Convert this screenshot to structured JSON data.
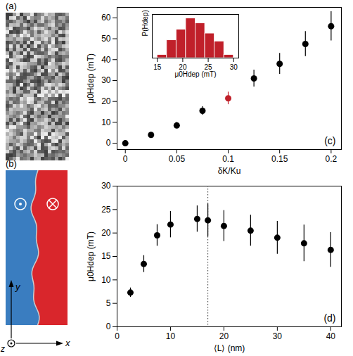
{
  "panels": {
    "a": {
      "label": "(a)"
    },
    "b": {
      "label": "(b)",
      "axis_labels": {
        "x": "x",
        "y": "y",
        "z": "z"
      },
      "colors": [
        "#3a7dc0",
        "#d9262c"
      ]
    }
  },
  "chart_data": [
    {
      "type": "scatter",
      "annotation": "(c)",
      "x_label": "δK/Ku",
      "y_label": "μ0Hdep (mT)",
      "x": [
        0,
        0.025,
        0.05,
        0.075,
        0.1,
        0.125,
        0.15,
        0.175,
        0.2
      ],
      "values": [
        0,
        4,
        8.5,
        15.5,
        21.5,
        31,
        38,
        47.5,
        56
      ],
      "errors": [
        0.5,
        1,
        1.5,
        2,
        3,
        4,
        5,
        6,
        7
      ],
      "colors": [
        "#000000",
        "#000000",
        "#000000",
        "#000000",
        "#c0202a",
        "#000000",
        "#000000",
        "#000000",
        "#000000"
      ],
      "marker": "circle",
      "xlim": [
        -0.008,
        0.21
      ],
      "xticks": [
        0,
        0.05,
        0.1,
        0.15,
        0.2
      ],
      "ylim": [
        -3,
        65
      ],
      "yticks": [
        0,
        10,
        20,
        30,
        40,
        50,
        60
      ]
    },
    {
      "type": "histogram",
      "x_label": "μ0Hdep (mT)",
      "y_label": "P(Hdep)",
      "bins": [
        15,
        16.875,
        18.75,
        20.625,
        22.5,
        24.375,
        26.25,
        28.125,
        30
      ],
      "values": [
        0.08,
        0.45,
        0.72,
        1.0,
        0.88,
        0.62,
        0.42,
        0.08
      ],
      "color": "#c0202a",
      "xlim": [
        14,
        31
      ],
      "xticks": [
        15,
        20,
        25,
        30
      ],
      "ylim": [
        0,
        1.1
      ],
      "tick_labels": "x"
    },
    {
      "type": "scatter",
      "annotation": "(d)",
      "x_label": "⟨L⟩ (nm)",
      "y_label": "μ0Hdep (mT)",
      "x": [
        2.5,
        5,
        7.5,
        10,
        15,
        17,
        20,
        25,
        30,
        35,
        40
      ],
      "values": [
        7.3,
        13.4,
        19.5,
        21.8,
        23,
        22.7,
        21.5,
        20.5,
        19,
        17.8,
        16.4
      ],
      "errors": [
        1,
        1.8,
        2.3,
        2.8,
        2.8,
        3.5,
        3.3,
        3.3,
        3.5,
        3.9,
        3.7
      ],
      "color": "#000000",
      "marker": "circle",
      "vline": 17,
      "line_style": "dotted",
      "xlim": [
        0,
        42
      ],
      "xticks": [
        0,
        10,
        20,
        30,
        40
      ],
      "ylim": [
        0,
        30
      ],
      "yticks": [
        0,
        5,
        10,
        15,
        20,
        25,
        30
      ]
    }
  ]
}
